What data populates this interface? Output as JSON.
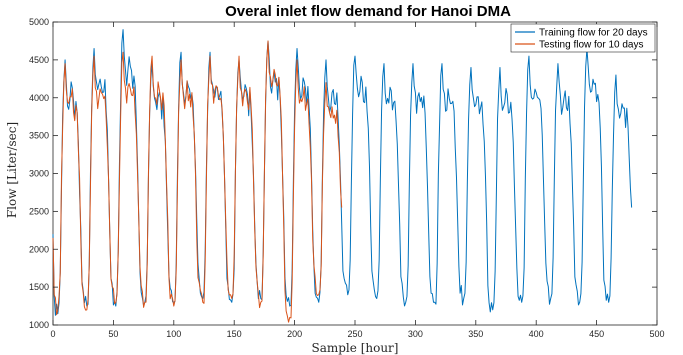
{
  "chart_data": {
    "type": "line",
    "title": "Overal inlet flow demand for Hanoi DMA",
    "xlabel": "Sample [hour]",
    "ylabel": "Flow [Liter/sec]",
    "xlim": [
      0,
      500
    ],
    "ylim": [
      1000,
      5000
    ],
    "x_ticks": [
      0,
      50,
      100,
      150,
      200,
      250,
      300,
      350,
      400,
      450,
      500
    ],
    "y_ticks": [
      1000,
      1500,
      2000,
      2500,
      3000,
      3500,
      4000,
      4500,
      5000
    ],
    "grid": false,
    "legend_position": "top-right",
    "series": [
      {
        "name": "Training flow for 20 days",
        "color": "#0072bd",
        "sampling": "hourly, x = 0..479",
        "daily_profile_approx": [
          1750,
          1550,
          1450,
          1400,
          1380,
          1450,
          1900,
          2900,
          3700,
          4200,
          4400,
          4100,
          3950,
          3850,
          3900,
          4050,
          4000,
          3900,
          3800,
          3950,
          3700,
          3400,
          2900,
          2300
        ],
        "daily_peaks_approx": [
          4500,
          4650,
          4900,
          4450,
          4600,
          4600,
          4500,
          4750,
          4650,
          4500,
          4550,
          4450,
          4450,
          4450,
          4400,
          4400,
          4550,
          4450,
          4650,
          4300
        ],
        "daily_minima_approx": [
          1150,
          1250,
          1250,
          1300,
          1300,
          1350,
          1300,
          1350,
          1250,
          1300,
          1400,
          1350,
          1300,
          1300,
          1350,
          1200,
          1300,
          1350,
          1300,
          1300
        ],
        "start_value": 2200,
        "end_value": 2550
      },
      {
        "name": "Testing flow for 10 days",
        "color": "#d95319",
        "sampling": "hourly, x = 0..240",
        "daily_profile_approx": [
          1750,
          1550,
          1450,
          1400,
          1380,
          1450,
          1900,
          2900,
          3700,
          4200,
          4400,
          4100,
          3950,
          3850,
          3900,
          4050,
          4000,
          3900,
          3800,
          3950,
          3700,
          3400,
          2900,
          2300
        ],
        "daily_peaks_approx": [
          4450,
          4550,
          4600,
          4550,
          4500,
          4550,
          4550,
          4750,
          4500,
          4200
        ],
        "daily_minima_approx": [
          1200,
          1200,
          1300,
          1300,
          1250,
          1300,
          1350,
          1300,
          1100,
          1400
        ],
        "start_value": 2150,
        "end_value": 2550
      }
    ]
  }
}
